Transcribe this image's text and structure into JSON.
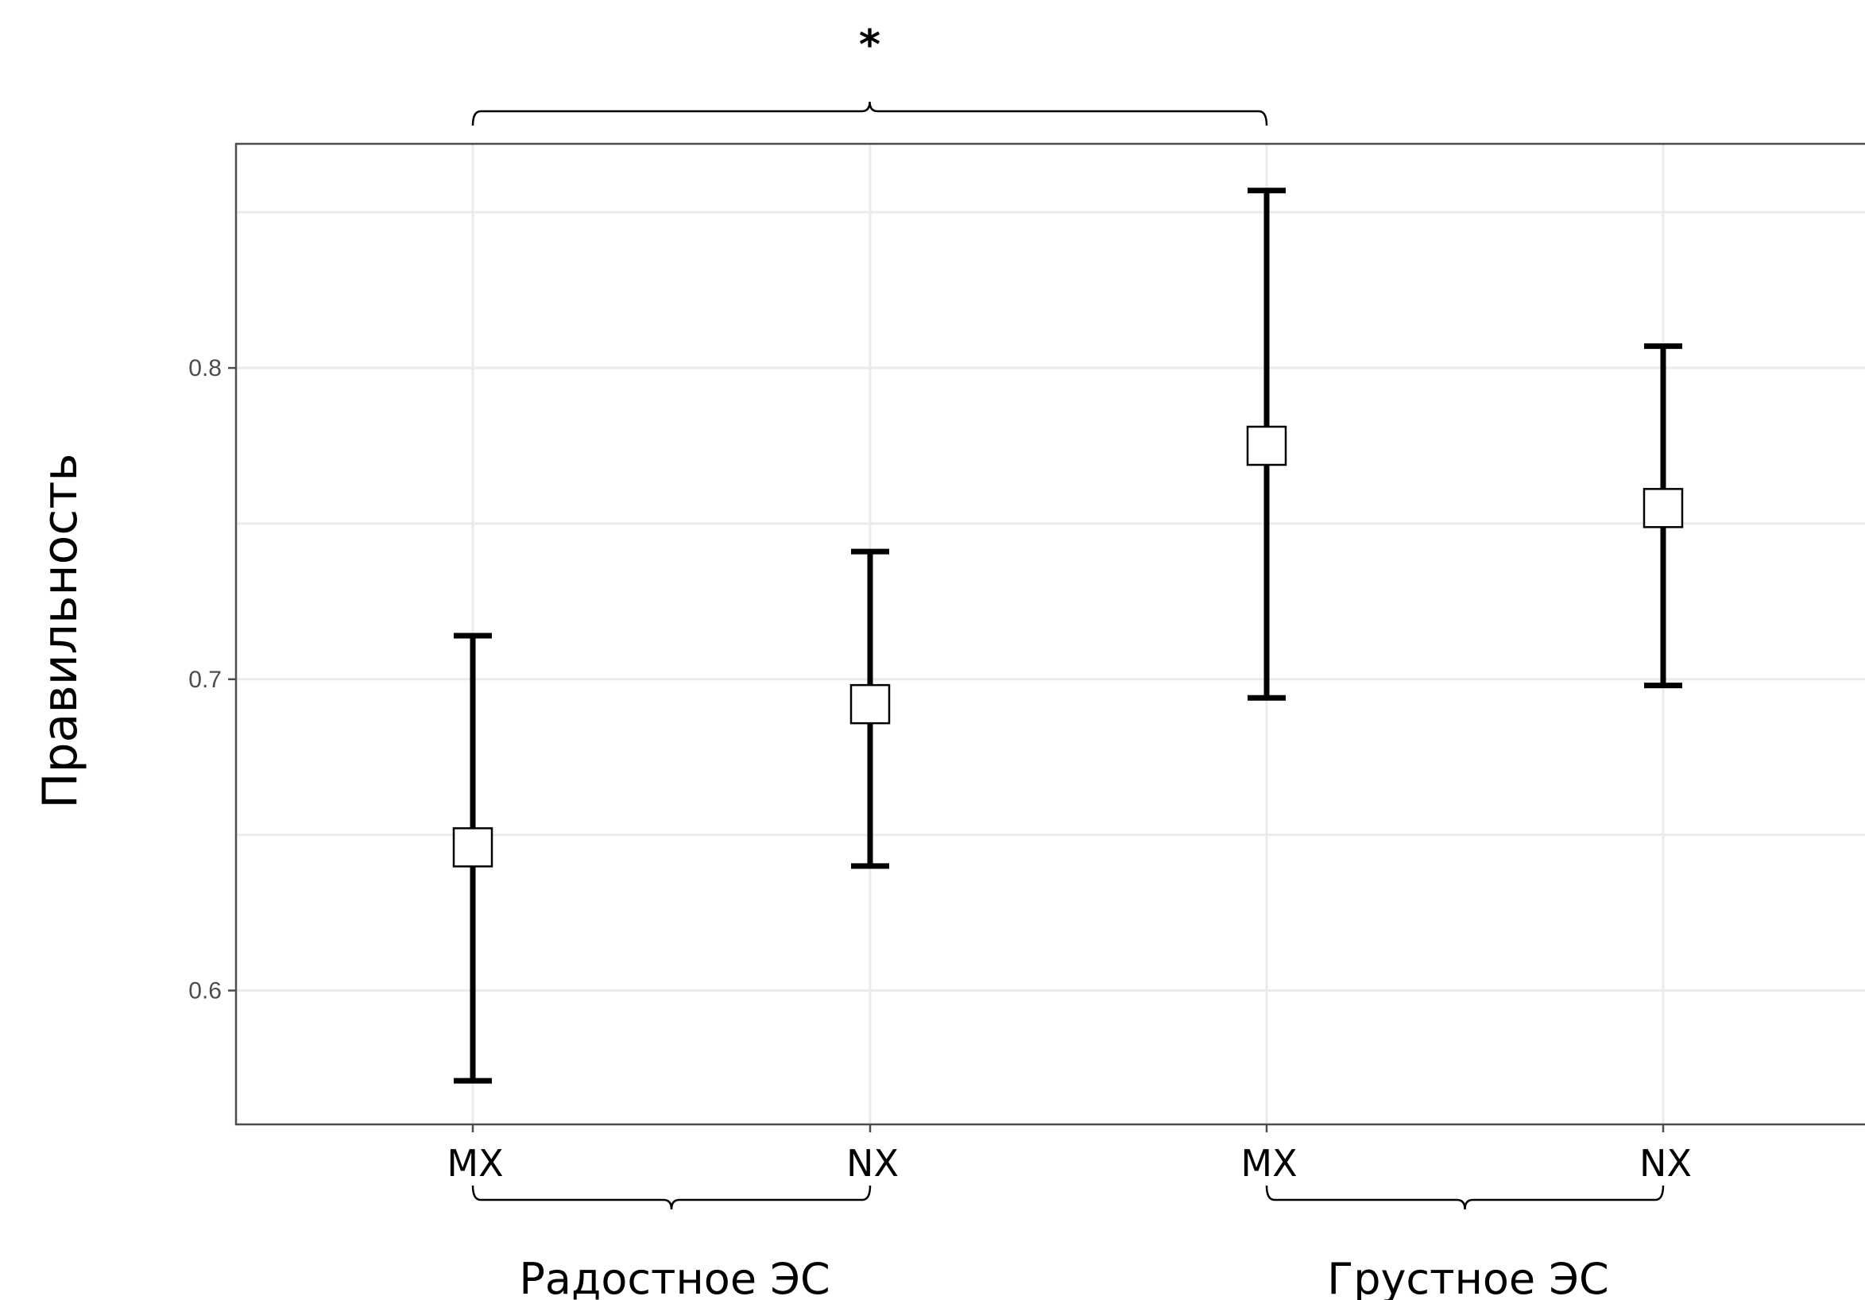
{
  "chart_data": {
    "type": "scatter",
    "xlabel": "",
    "ylabel": "Правильность",
    "categories": [
      "MX",
      "NX",
      "MX",
      "NX"
    ],
    "points": [
      {
        "category": "MX",
        "group": "Радостное ЭС",
        "y": 0.646,
        "ymin": 0.571,
        "ymax": 0.714
      },
      {
        "category": "NX",
        "group": "Радостное ЭС",
        "y": 0.692,
        "ymin": 0.64,
        "ymax": 0.741
      },
      {
        "category": "MX",
        "group": "Грустное ЭС",
        "y": 0.775,
        "ymin": 0.694,
        "ymax": 0.857
      },
      {
        "category": "NX",
        "group": "Грустное ЭС",
        "y": 0.755,
        "ymin": 0.698,
        "ymax": 0.807
      }
    ],
    "yticks": [
      {
        "value": 0.6,
        "label": "0.6"
      },
      {
        "value": 0.7,
        "label": "0.7"
      },
      {
        "value": 0.8,
        "label": "0.8"
      }
    ],
    "ylim": [
      0.557,
      0.872
    ],
    "groups": [
      {
        "label": "Радостное ЭС",
        "from": 0,
        "to": 1
      },
      {
        "label": "Грустное ЭС",
        "from": 2,
        "to": 3
      }
    ],
    "significance": {
      "label": "*",
      "from": 0,
      "to": 2
    },
    "grid": true,
    "legend": "none"
  }
}
